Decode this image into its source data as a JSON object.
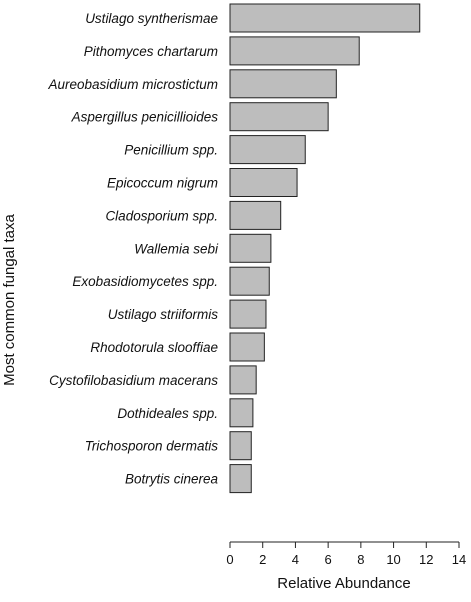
{
  "chart_data": {
    "type": "bar",
    "orientation": "horizontal",
    "categories": [
      "Ustilago syntherismae",
      "Pithomyces chartarum",
      "Aureobasidium microstictum",
      "Aspergillus penicillioides",
      "Penicillium spp.",
      "Epicoccum nigrum",
      "Cladosporium spp.",
      "Wallemia sebi",
      "Exobasidiomycetes spp.",
      "Ustilago striiformis",
      "Rhodotorula slooffiae",
      "Cystofilobasidium macerans",
      "Dothideales spp.",
      "Trichosporon dermatis",
      "Botrytis cinerea"
    ],
    "values": [
      11.6,
      7.9,
      6.5,
      6.0,
      4.6,
      4.1,
      3.1,
      2.5,
      2.4,
      2.2,
      2.1,
      1.6,
      1.4,
      1.3,
      1.3
    ],
    "xlabel": "Relative Abundance",
    "ylabel": "Most common fungal taxa",
    "xlim": [
      0,
      14
    ],
    "xticks": [
      0,
      2,
      4,
      6,
      8,
      10,
      12,
      14
    ],
    "grid": false,
    "colors": {
      "bar_fill": "#bdbdbd",
      "bar_stroke": "#222222"
    }
  }
}
